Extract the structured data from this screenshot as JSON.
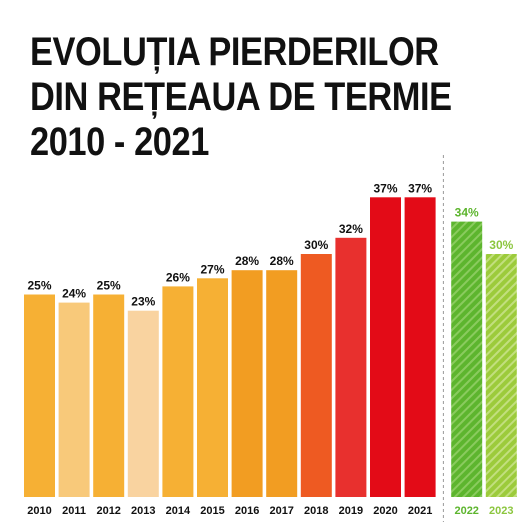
{
  "title_lines": [
    "EVOLUȚIA PIERDERILOR",
    "DIN REȚEAUA DE TERMIE",
    "2010 - 2021"
  ],
  "chart_data": {
    "type": "bar",
    "title": "EVOLUȚIA PIERDERILOR DIN REȚEAUA DE TERMIE 2010 - 2021",
    "xlabel": "",
    "ylabel": "",
    "ylim": [
      0,
      40
    ],
    "value_suffix": "%",
    "categories": [
      "2010",
      "2011",
      "2012",
      "2013",
      "2014",
      "2015",
      "2016",
      "2017",
      "2018",
      "2019",
      "2020",
      "2021",
      "2022",
      "2023"
    ],
    "values": [
      25,
      24,
      25,
      23,
      26,
      27,
      28,
      28,
      30,
      32,
      37,
      37,
      34,
      30
    ],
    "colors": [
      "#F6B034",
      "#F8C97A",
      "#F6B034",
      "#F9D3A0",
      "#F6B034",
      "#F6B034",
      "#F29D22",
      "#F29D22",
      "#EE5A22",
      "#E8302E",
      "#E30B17",
      "#E30B17",
      "#5DB52E",
      "#9CCB3B"
    ],
    "label_colors": [
      "#111111",
      "#111111",
      "#111111",
      "#111111",
      "#111111",
      "#111111",
      "#111111",
      "#111111",
      "#111111",
      "#111111",
      "#111111",
      "#111111",
      "#5DB52E",
      "#8CC63F"
    ],
    "striped": [
      false,
      false,
      false,
      false,
      false,
      false,
      false,
      false,
      false,
      false,
      false,
      false,
      true,
      true
    ],
    "separator_after": "2021",
    "grid": false,
    "legend": "none"
  }
}
